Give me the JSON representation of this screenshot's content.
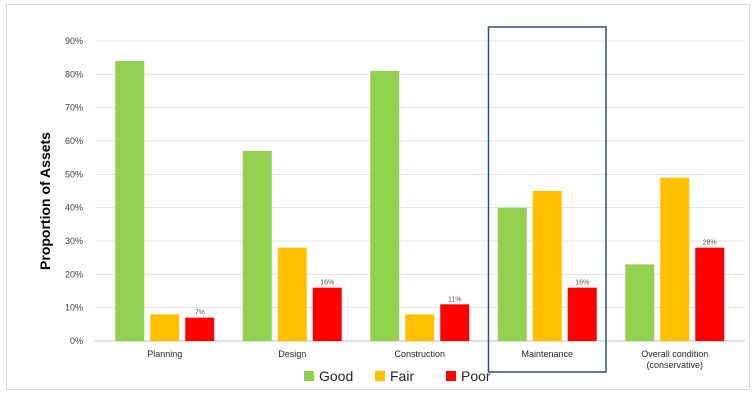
{
  "chart_data": {
    "type": "bar",
    "title": "",
    "xlabel": "",
    "ylabel": "Proportion of Assets",
    "ylim": [
      0,
      90
    ],
    "yticks": [
      "0%",
      "10%",
      "20%",
      "30%",
      "40%",
      "50%",
      "60%",
      "70%",
      "80%",
      "90%"
    ],
    "categories": [
      "Planning",
      "Design",
      "Construction",
      "Maintenance",
      "Overall condition (conservative)"
    ],
    "category_lines": [
      [
        "Planning"
      ],
      [
        "Design"
      ],
      [
        "Construction"
      ],
      [
        "Maintenance"
      ],
      [
        "Overall condition",
        "(conservative)"
      ]
    ],
    "highlighted_category": "Maintenance",
    "grid": true,
    "legend_position": "bottom",
    "series": [
      {
        "name": "Good",
        "color": "#92d050",
        "values": [
          84,
          57,
          81,
          40,
          23
        ]
      },
      {
        "name": "Fair",
        "color": "#ffc000",
        "values": [
          8,
          28,
          8,
          45,
          49
        ]
      },
      {
        "name": "Poor",
        "color": "#ff0000",
        "values": [
          7,
          16,
          11,
          16,
          28
        ],
        "labels": [
          "7%",
          "16%",
          "11%",
          "16%",
          "28%"
        ]
      }
    ]
  }
}
